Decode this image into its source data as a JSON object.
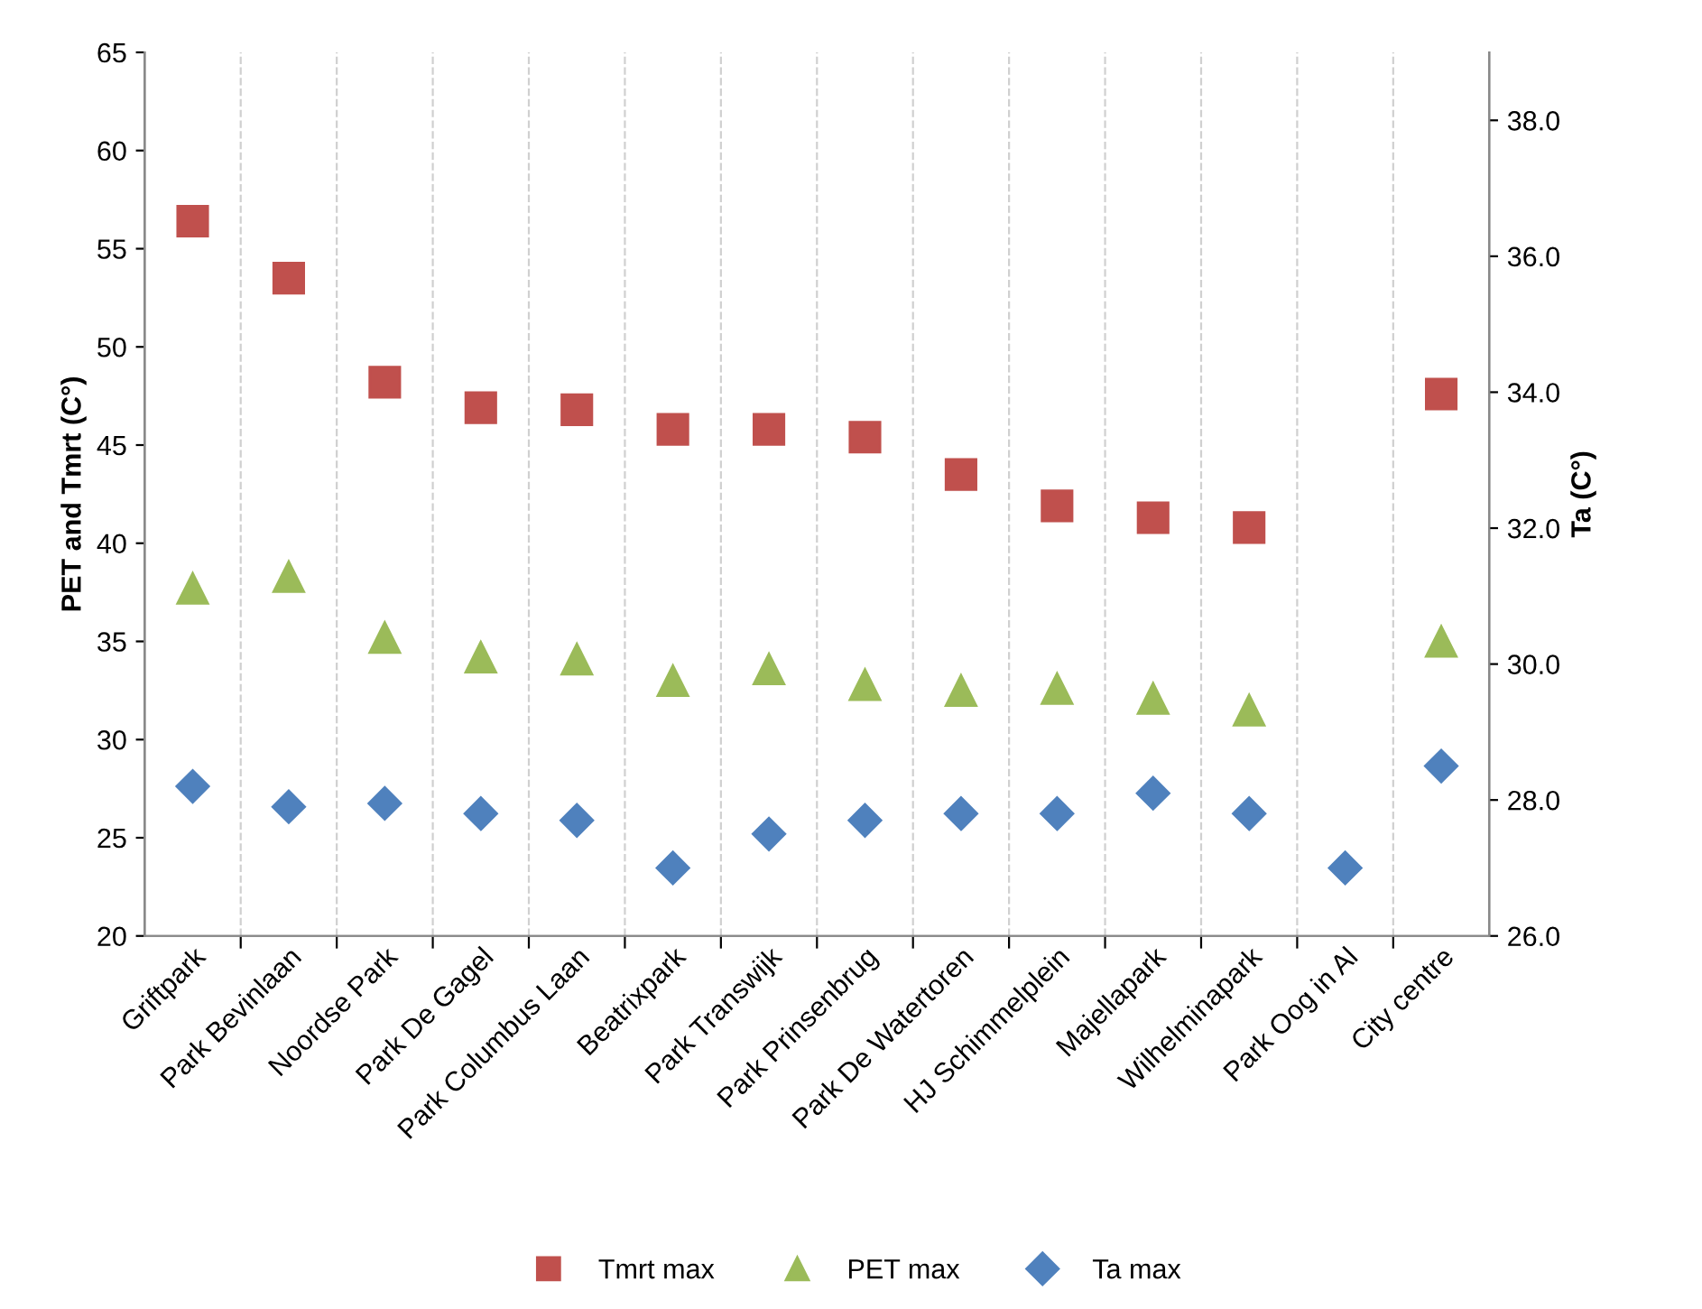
{
  "chart_data": {
    "type": "scatter",
    "categories": [
      "Griftpark",
      "Park Bevinlaan",
      "Noordse Park",
      "Park De Gagel",
      "Park Columbus Laan",
      "Beatrixpark",
      "Park Transwijk",
      "Park Prinsenbrug",
      "Park De Watertoren",
      "HJ Schimmelplein",
      "Majellapark",
      "Wilhelminapark",
      "Park Oog in Al",
      "City centre"
    ],
    "series": [
      {
        "name": "Tmrt max",
        "color": "#c0504d",
        "marker": "square",
        "values": [
          56.4,
          53.5,
          48.2,
          46.9,
          46.8,
          45.8,
          45.8,
          45.4,
          43.5,
          41.9,
          41.3,
          40.8,
          null,
          47.6
        ]
      },
      {
        "name": "PET max",
        "color": "#9bbb59",
        "marker": "triangle",
        "values": [
          37.7,
          38.3,
          35.2,
          34.2,
          34.1,
          33.0,
          33.6,
          32.8,
          32.5,
          32.6,
          32.1,
          31.5,
          null,
          35.0
        ]
      },
      {
        "name": "Ta max",
        "color": "#4f81bd",
        "marker": "diamond",
        "axis": "y2",
        "values": [
          28.2,
          27.9,
          27.95,
          27.8,
          27.7,
          27.0,
          27.5,
          27.7,
          27.8,
          27.8,
          28.1,
          27.8,
          27.0,
          28.5
        ]
      }
    ],
    "ylabel": "PET and Tmrt (C°)",
    "y2label": "Ta (C°)",
    "ylim": [
      20,
      65
    ],
    "yticks": [
      20,
      25,
      30,
      35,
      40,
      45,
      50,
      55,
      60,
      65
    ],
    "y2lim": [
      26,
      39
    ],
    "y2ticks": [
      {
        "value": 26,
        "label": "26.0"
      },
      {
        "value": 28,
        "label": "28.0"
      },
      {
        "value": 30,
        "label": "30.0"
      },
      {
        "value": 32,
        "label": "32.0"
      },
      {
        "value": 34,
        "label": "34.0"
      },
      {
        "value": 36,
        "label": "36.0"
      },
      {
        "value": 38,
        "label": "38.0"
      }
    ],
    "grid": "x",
    "legend": "bottom"
  }
}
